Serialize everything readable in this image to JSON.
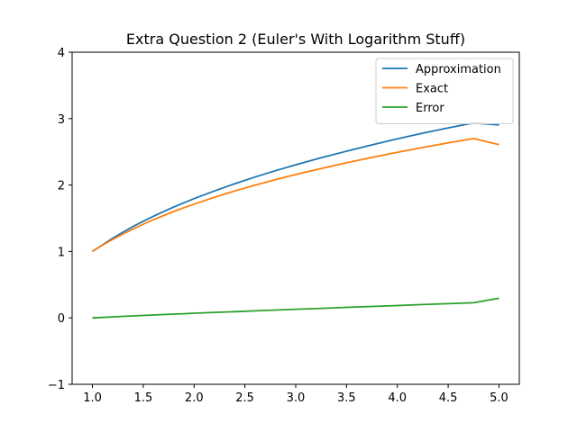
{
  "chart_data": {
    "type": "line",
    "title": "Extra Question 2 (Euler's With Logarithm Stuff)",
    "xlabel": "",
    "ylabel": "",
    "xlim": [
      0.8,
      5.2
    ],
    "ylim": [
      -1,
      4
    ],
    "xticks": [
      "1.0",
      "1.5",
      "2.0",
      "2.5",
      "3.0",
      "3.5",
      "4.0",
      "4.5",
      "5.0"
    ],
    "yticks": [
      "-1",
      "0",
      "1",
      "2",
      "3",
      "4"
    ],
    "grid": false,
    "legend_position": "top-right",
    "x": [
      1.0,
      1.1,
      1.2,
      1.3,
      1.4,
      1.5,
      1.6,
      1.7,
      1.8,
      1.9,
      2.0,
      2.2,
      2.4,
      2.6,
      2.8,
      3.0,
      3.25,
      3.5,
      3.75,
      4.0,
      4.25,
      4.5,
      4.75,
      5.0
    ],
    "series": [
      {
        "name": "Approximation",
        "color": "#1f77b4",
        "values": [
          1.0,
          1.1,
          1.2,
          1.29,
          1.375,
          1.455,
          1.53,
          1.6,
          1.668,
          1.733,
          1.795,
          1.91,
          2.02,
          2.12,
          2.215,
          2.305,
          2.41,
          2.51,
          2.605,
          2.695,
          2.78,
          2.86,
          2.935,
          2.905
        ]
      },
      {
        "name": "Exact",
        "color": "#ff7f0e",
        "values": [
          1.0,
          1.095,
          1.182,
          1.263,
          1.339,
          1.41,
          1.477,
          1.541,
          1.601,
          1.658,
          1.713,
          1.816,
          1.91,
          1.998,
          2.081,
          2.159,
          2.25,
          2.335,
          2.416,
          2.492,
          2.565,
          2.634,
          2.7,
          2.609
        ]
      },
      {
        "name": "Error",
        "color": "#2ca02c",
        "values": [
          0.0,
          0.007,
          0.015,
          0.023,
          0.03,
          0.037,
          0.044,
          0.05,
          0.057,
          0.063,
          0.07,
          0.082,
          0.094,
          0.106,
          0.118,
          0.13,
          0.144,
          0.158,
          0.172,
          0.186,
          0.2,
          0.214,
          0.228,
          0.296
        ]
      }
    ]
  }
}
